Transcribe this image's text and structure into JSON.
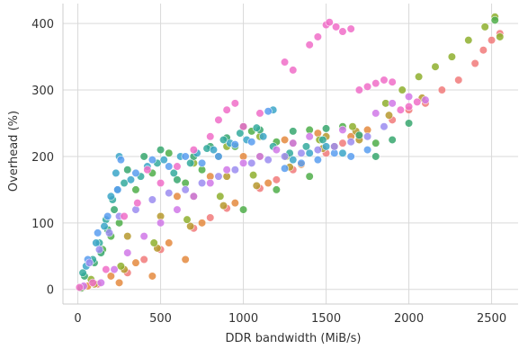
{
  "chart_data": {
    "type": "scatter",
    "title": "",
    "xlabel": "DDR bandwidth (MiB/s)",
    "ylabel": "Overhead (%)",
    "xlim": [
      -90,
      2660
    ],
    "ylim": [
      -22,
      430
    ],
    "xticks": [
      0,
      500,
      1000,
      1500,
      2000,
      2500
    ],
    "yticks": [
      0,
      100,
      200,
      300,
      400
    ],
    "x_tick_labels": [
      "0",
      "500",
      "1000",
      "1500",
      "2000",
      "2500"
    ],
    "y_tick_labels": [
      "0",
      "100",
      "200",
      "300",
      "400"
    ],
    "grid": true,
    "legend": "none",
    "palette": [
      "#f27b7b",
      "#e58a3f",
      "#b79a2e",
      "#8fb02e",
      "#4fae4a",
      "#38a86f",
      "#34ab9e",
      "#3ca6c8",
      "#5a9ef0",
      "#9c8cf0",
      "#d178e8",
      "#f06ec8"
    ],
    "series": [
      {
        "color_index": 0,
        "points": [
          [
            30,
            3
          ],
          [
            120,
            8
          ],
          [
            300,
            25
          ],
          [
            500,
            60
          ],
          [
            700,
            92
          ],
          [
            900,
            122
          ],
          [
            1100,
            152
          ],
          [
            1300,
            180
          ],
          [
            1500,
            205
          ],
          [
            1700,
            230
          ],
          [
            1900,
            255
          ],
          [
            2100,
            280
          ],
          [
            2200,
            300
          ],
          [
            2300,
            315
          ],
          [
            2400,
            340
          ],
          [
            2450,
            360
          ],
          [
            2500,
            375
          ],
          [
            2550,
            385
          ],
          [
            400,
            45
          ],
          [
            800,
            108
          ],
          [
            1200,
            165
          ],
          [
            1600,
            220
          ],
          [
            2000,
            270
          ]
        ]
      },
      {
        "color_index": 1,
        "points": [
          [
            60,
            5
          ],
          [
            200,
            20
          ],
          [
            350,
            40
          ],
          [
            550,
            70
          ],
          [
            750,
            100
          ],
          [
            950,
            130
          ],
          [
            1150,
            160
          ],
          [
            1350,
            188
          ],
          [
            1550,
            215
          ],
          [
            1750,
            240
          ],
          [
            600,
            140
          ],
          [
            800,
            170
          ],
          [
            1000,
            200
          ],
          [
            1250,
            225
          ],
          [
            1450,
            235
          ],
          [
            1650,
            230
          ],
          [
            250,
            10
          ],
          [
            450,
            20
          ],
          [
            650,
            45
          ]
        ]
      },
      {
        "color_index": 2,
        "points": [
          [
            100,
            8
          ],
          [
            280,
            30
          ],
          [
            480,
            62
          ],
          [
            680,
            95
          ],
          [
            880,
            126
          ],
          [
            1080,
            156
          ],
          [
            1280,
            184
          ],
          [
            1480,
            212
          ],
          [
            1680,
            238
          ],
          [
            1880,
            262
          ],
          [
            2080,
            288
          ],
          [
            300,
            80
          ],
          [
            500,
            110
          ],
          [
            700,
            140
          ],
          [
            900,
            170
          ],
          [
            1100,
            200
          ],
          [
            1300,
            220
          ],
          [
            1500,
            230
          ],
          [
            1700,
            225
          ]
        ]
      },
      {
        "color_index": 3,
        "points": [
          [
            80,
            15
          ],
          [
            260,
            35
          ],
          [
            460,
            70
          ],
          [
            660,
            105
          ],
          [
            860,
            140
          ],
          [
            1060,
            172
          ],
          [
            1260,
            200
          ],
          [
            1460,
            225
          ],
          [
            1660,
            245
          ],
          [
            1860,
            280
          ],
          [
            1960,
            300
          ],
          [
            2060,
            320
          ],
          [
            2160,
            335
          ],
          [
            2260,
            350
          ],
          [
            2360,
            375
          ],
          [
            2460,
            395
          ],
          [
            2520,
            410
          ],
          [
            2550,
            380
          ],
          [
            700,
            190
          ],
          [
            900,
            215
          ],
          [
            1100,
            230
          ]
        ]
      },
      {
        "color_index": 4,
        "points": [
          [
            20,
            2
          ],
          [
            150,
            60
          ],
          [
            200,
            80
          ],
          [
            250,
            100
          ],
          [
            350,
            150
          ],
          [
            450,
            175
          ],
          [
            550,
            205
          ],
          [
            650,
            160
          ],
          [
            750,
            180
          ],
          [
            850,
            200
          ],
          [
            950,
            215
          ],
          [
            1050,
            238
          ],
          [
            1200,
            222
          ],
          [
            1400,
            240
          ],
          [
            1600,
            245
          ],
          [
            1800,
            220
          ],
          [
            1000,
            120
          ],
          [
            1200,
            150
          ],
          [
            1400,
            170
          ],
          [
            2520,
            405
          ]
        ]
      },
      {
        "color_index": 5,
        "points": [
          [
            40,
            20
          ],
          [
            100,
            40
          ],
          [
            140,
            55
          ],
          [
            180,
            90
          ],
          [
            220,
            120
          ],
          [
            300,
            180
          ],
          [
            400,
            200
          ],
          [
            500,
            210
          ],
          [
            600,
            165
          ],
          [
            700,
            200
          ],
          [
            800,
            215
          ],
          [
            900,
            228
          ],
          [
            1000,
            245
          ],
          [
            1100,
            240
          ],
          [
            1300,
            238
          ],
          [
            1500,
            242
          ],
          [
            1700,
            232
          ],
          [
            1800,
            200
          ],
          [
            1900,
            225
          ],
          [
            2000,
            250
          ]
        ]
      },
      {
        "color_index": 6,
        "points": [
          [
            30,
            25
          ],
          [
            90,
            45
          ],
          [
            130,
            70
          ],
          [
            170,
            105
          ],
          [
            210,
            135
          ],
          [
            240,
            150
          ],
          [
            280,
            160
          ],
          [
            380,
            170
          ],
          [
            480,
            190
          ],
          [
            580,
            175
          ],
          [
            680,
            190
          ],
          [
            780,
            212
          ],
          [
            880,
            225
          ],
          [
            980,
            235
          ],
          [
            1080,
            243
          ],
          [
            1180,
            215
          ],
          [
            1280,
            205
          ],
          [
            1380,
            215
          ],
          [
            1480,
            225
          ]
        ]
      },
      {
        "color_index": 7,
        "points": [
          [
            50,
            35
          ],
          [
            110,
            70
          ],
          [
            160,
            95
          ],
          [
            200,
            140
          ],
          [
            230,
            175
          ],
          [
            250,
            200
          ],
          [
            320,
            165
          ],
          [
            420,
            185
          ],
          [
            520,
            195
          ],
          [
            620,
            200
          ],
          [
            720,
            205
          ],
          [
            820,
            210
          ],
          [
            920,
            220
          ],
          [
            1020,
            225
          ],
          [
            1120,
            230
          ],
          [
            1180,
            270
          ],
          [
            1300,
            195
          ],
          [
            1400,
            205
          ],
          [
            1500,
            215
          ],
          [
            1600,
            205
          ]
        ]
      },
      {
        "color_index": 8,
        "points": [
          [
            60,
            45
          ],
          [
            120,
            85
          ],
          [
            180,
            110
          ],
          [
            240,
            150
          ],
          [
            260,
            195
          ],
          [
            350,
            175
          ],
          [
            450,
            195
          ],
          [
            550,
            185
          ],
          [
            650,
            200
          ],
          [
            750,
            190
          ],
          [
            850,
            200
          ],
          [
            950,
            218
          ],
          [
            1050,
            222
          ],
          [
            1150,
            268
          ],
          [
            1250,
            182
          ],
          [
            1350,
            190
          ],
          [
            1450,
            195
          ],
          [
            1550,
            205
          ],
          [
            1650,
            200
          ],
          [
            1750,
            210
          ]
        ]
      },
      {
        "color_index": 9,
        "points": [
          [
            70,
            40
          ],
          [
            130,
            60
          ],
          [
            190,
            85
          ],
          [
            250,
            110
          ],
          [
            350,
            120
          ],
          [
            450,
            135
          ],
          [
            550,
            145
          ],
          [
            650,
            150
          ],
          [
            750,
            160
          ],
          [
            850,
            170
          ],
          [
            950,
            180
          ],
          [
            1050,
            190
          ],
          [
            1150,
            195
          ],
          [
            1250,
            200
          ],
          [
            1350,
            205
          ],
          [
            1450,
            210
          ],
          [
            1550,
            215
          ],
          [
            1650,
            222
          ],
          [
            1750,
            230
          ],
          [
            1850,
            245
          ]
        ]
      },
      {
        "color_index": 10,
        "points": [
          [
            35,
            5
          ],
          [
            140,
            10
          ],
          [
            220,
            30
          ],
          [
            300,
            55
          ],
          [
            400,
            80
          ],
          [
            500,
            100
          ],
          [
            600,
            120
          ],
          [
            700,
            140
          ],
          [
            800,
            160
          ],
          [
            900,
            180
          ],
          [
            1000,
            190
          ],
          [
            1100,
            200
          ],
          [
            1200,
            210
          ],
          [
            1300,
            220
          ],
          [
            1400,
            230
          ],
          [
            1600,
            240
          ],
          [
            1800,
            265
          ],
          [
            1900,
            280
          ],
          [
            2000,
            290
          ],
          [
            2100,
            285
          ]
        ]
      },
      {
        "color_index": 11,
        "points": [
          [
            10,
            3
          ],
          [
            90,
            10
          ],
          [
            170,
            30
          ],
          [
            280,
            110
          ],
          [
            360,
            130
          ],
          [
            420,
            180
          ],
          [
            500,
            160
          ],
          [
            600,
            185
          ],
          [
            700,
            210
          ],
          [
            800,
            230
          ],
          [
            850,
            255
          ],
          [
            900,
            270
          ],
          [
            950,
            280
          ],
          [
            1000,
            245
          ],
          [
            1100,
            265
          ],
          [
            1250,
            342
          ],
          [
            1300,
            330
          ],
          [
            1400,
            368
          ],
          [
            1450,
            380
          ],
          [
            1500,
            398
          ],
          [
            1520,
            402
          ],
          [
            1560,
            395
          ],
          [
            1600,
            388
          ],
          [
            1650,
            392
          ],
          [
            1700,
            300
          ],
          [
            1750,
            305
          ],
          [
            1800,
            310
          ],
          [
            1850,
            315
          ],
          [
            1900,
            312
          ],
          [
            1950,
            270
          ],
          [
            2000,
            275
          ],
          [
            2050,
            282
          ]
        ]
      }
    ]
  }
}
